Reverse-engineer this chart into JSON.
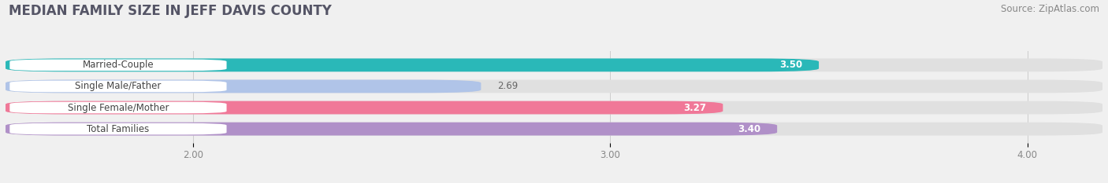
{
  "title": "MEDIAN FAMILY SIZE IN JEFF DAVIS COUNTY",
  "source": "Source: ZipAtlas.com",
  "categories": [
    "Married-Couple",
    "Single Male/Father",
    "Single Female/Mother",
    "Total Families"
  ],
  "values": [
    3.5,
    2.69,
    3.27,
    3.4
  ],
  "bar_colors": [
    "#2ab8b8",
    "#b0c4e8",
    "#f07898",
    "#b090c8"
  ],
  "label_colors": [
    "#ffffff",
    "#888888",
    "#ffffff",
    "#ffffff"
  ],
  "xlim_left": 1.55,
  "xlim_right": 4.18,
  "xticks": [
    2.0,
    3.0,
    4.0
  ],
  "xtick_labels": [
    "2.00",
    "3.00",
    "4.00"
  ],
  "background_color": "#f0f0f0",
  "bar_background_color": "#e0e0e0",
  "title_fontsize": 12,
  "source_fontsize": 8.5,
  "bar_height": 0.62,
  "bar_label_fontsize": 8.5,
  "category_label_fontsize": 8.5,
  "label_bg_color": "#ffffff"
}
